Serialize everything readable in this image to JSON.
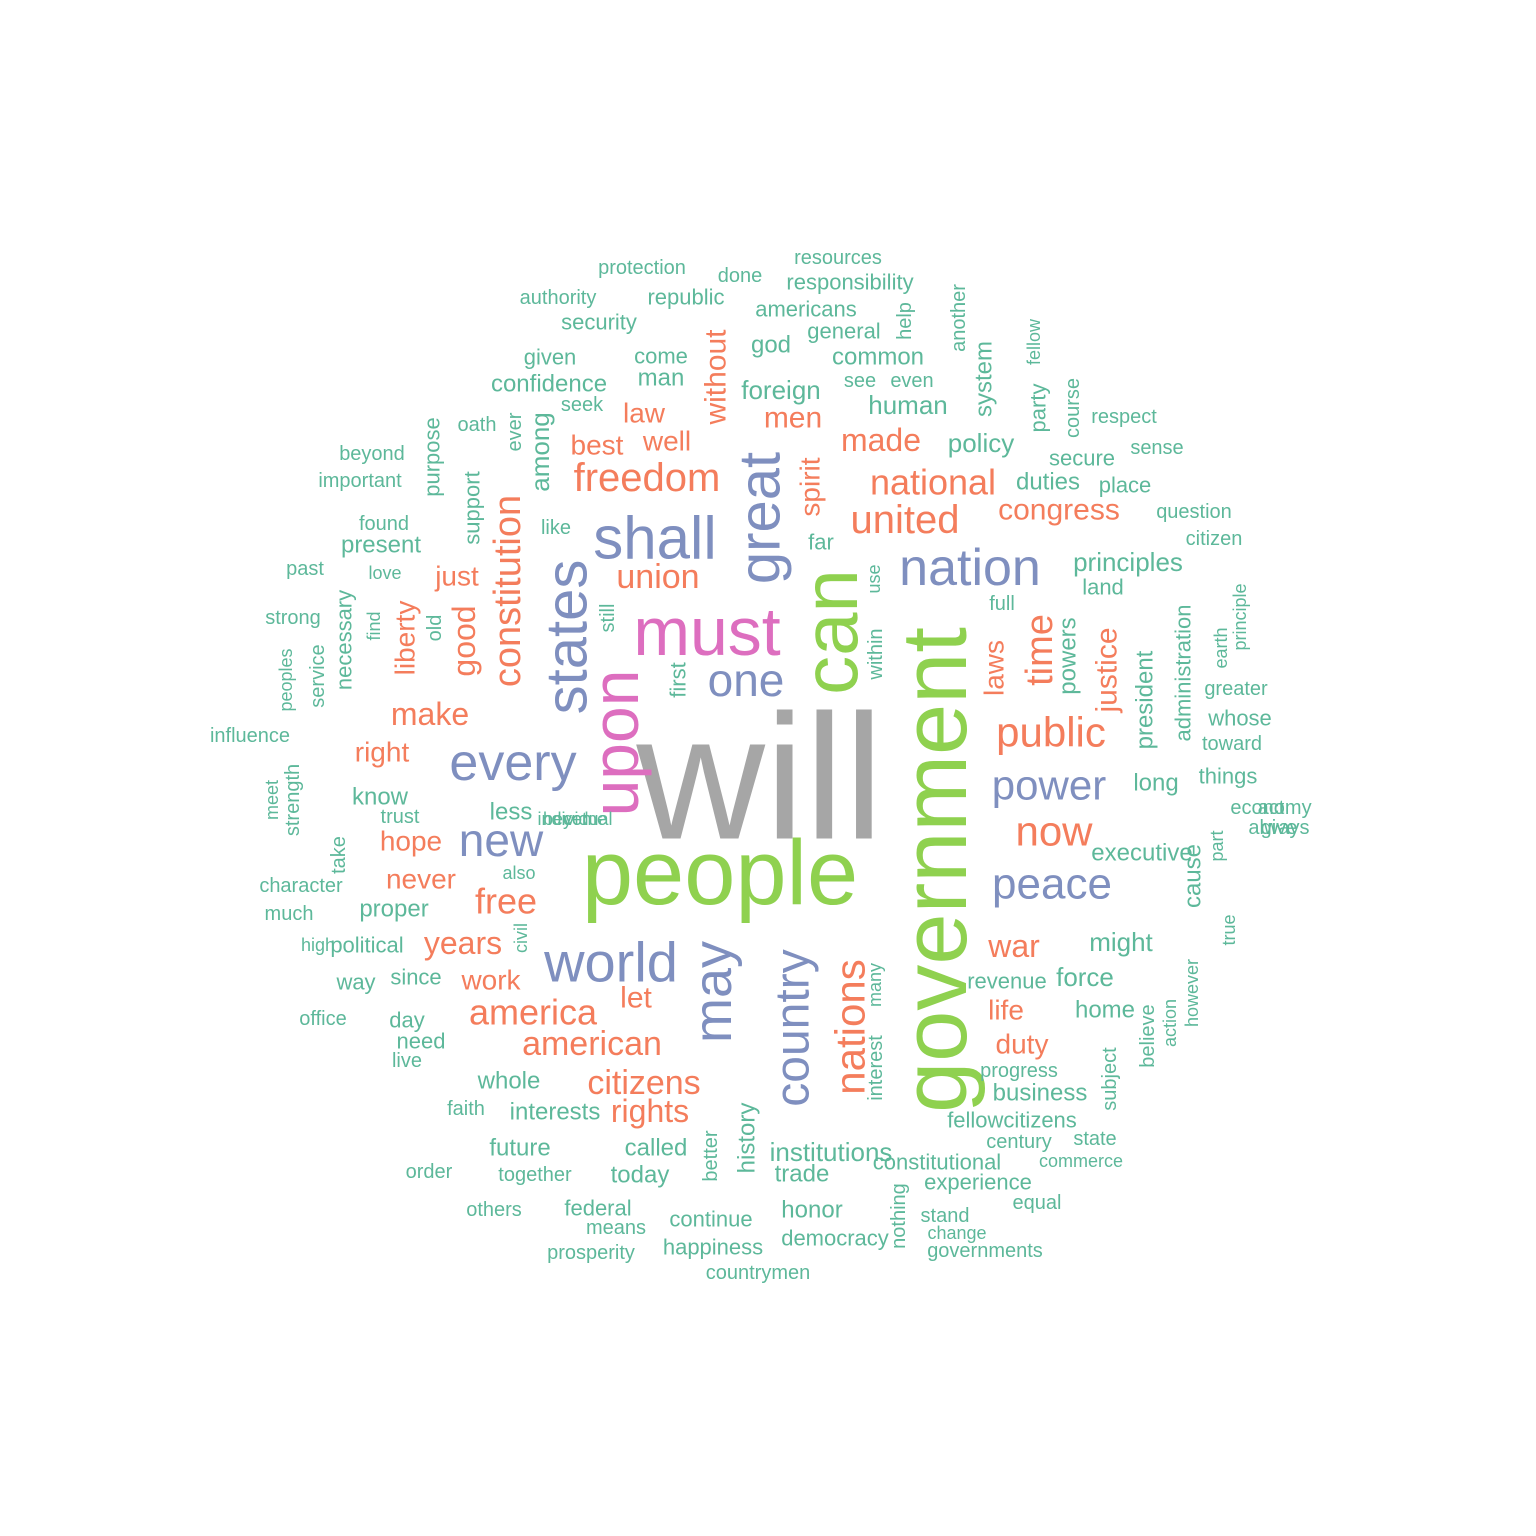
{
  "palette": {
    "grey": "#A6A6A6",
    "green": "#8FD14F",
    "pink": "#DD6EBF",
    "blue": "#7F8FBF",
    "orange": "#F47D5C",
    "teal": "#5DB89A"
  },
  "words": [
    {
      "text": "will",
      "color": "grey"
    },
    {
      "text": "people",
      "color": "green"
    },
    {
      "text": "government",
      "color": "green"
    },
    {
      "text": "can",
      "color": "green"
    },
    {
      "text": "must",
      "color": "pink"
    },
    {
      "text": "upon",
      "color": "pink"
    },
    {
      "text": "shall",
      "color": "blue"
    },
    {
      "text": "great",
      "color": "blue"
    },
    {
      "text": "states",
      "color": "blue"
    },
    {
      "text": "nation",
      "color": "blue"
    },
    {
      "text": "every",
      "color": "blue"
    },
    {
      "text": "world",
      "color": "blue"
    },
    {
      "text": "may",
      "color": "blue"
    },
    {
      "text": "country",
      "color": "blue"
    },
    {
      "text": "one",
      "color": "blue"
    },
    {
      "text": "new",
      "color": "blue"
    },
    {
      "text": "power",
      "color": "blue"
    },
    {
      "text": "peace",
      "color": "blue"
    },
    {
      "text": "public",
      "color": "orange"
    },
    {
      "text": "now",
      "color": "orange"
    },
    {
      "text": "nations",
      "color": "orange"
    },
    {
      "text": "freedom",
      "color": "orange"
    },
    {
      "text": "united",
      "color": "orange"
    },
    {
      "text": "constitution",
      "color": "orange"
    },
    {
      "text": "america",
      "color": "orange"
    },
    {
      "text": "american",
      "color": "orange"
    },
    {
      "text": "union",
      "color": "orange"
    },
    {
      "text": "time",
      "color": "orange"
    },
    {
      "text": "national",
      "color": "orange"
    },
    {
      "text": "made",
      "color": "orange"
    },
    {
      "text": "free",
      "color": "orange"
    },
    {
      "text": "citizens",
      "color": "orange"
    },
    {
      "text": "rights",
      "color": "orange"
    },
    {
      "text": "war",
      "color": "orange"
    },
    {
      "text": "years",
      "color": "orange"
    },
    {
      "text": "make",
      "color": "orange"
    },
    {
      "text": "good",
      "color": "orange"
    },
    {
      "text": "justice",
      "color": "orange"
    },
    {
      "text": "congress",
      "color": "orange"
    },
    {
      "text": "men",
      "color": "orange"
    },
    {
      "text": "law",
      "color": "orange"
    },
    {
      "text": "well",
      "color": "orange"
    },
    {
      "text": "best",
      "color": "orange"
    },
    {
      "text": "without",
      "color": "orange"
    },
    {
      "text": "spirit",
      "color": "orange"
    },
    {
      "text": "just",
      "color": "orange"
    },
    {
      "text": "liberty",
      "color": "orange"
    },
    {
      "text": "laws",
      "color": "orange"
    },
    {
      "text": "right",
      "color": "orange"
    },
    {
      "text": "hope",
      "color": "orange"
    },
    {
      "text": "never",
      "color": "orange"
    },
    {
      "text": "work",
      "color": "orange"
    },
    {
      "text": "let",
      "color": "orange"
    },
    {
      "text": "life",
      "color": "orange"
    },
    {
      "text": "duty",
      "color": "orange"
    },
    {
      "text": "resources",
      "color": "teal"
    },
    {
      "text": "protection",
      "color": "teal"
    },
    {
      "text": "done",
      "color": "teal"
    },
    {
      "text": "responsibility",
      "color": "teal"
    },
    {
      "text": "authority",
      "color": "teal"
    },
    {
      "text": "republic",
      "color": "teal"
    },
    {
      "text": "americans",
      "color": "teal"
    },
    {
      "text": "security",
      "color": "teal"
    },
    {
      "text": "general",
      "color": "teal"
    },
    {
      "text": "help",
      "color": "teal"
    },
    {
      "text": "another",
      "color": "teal"
    },
    {
      "text": "god",
      "color": "teal"
    },
    {
      "text": "given",
      "color": "teal"
    },
    {
      "text": "come",
      "color": "teal"
    },
    {
      "text": "common",
      "color": "teal"
    },
    {
      "text": "system",
      "color": "teal"
    },
    {
      "text": "fellow",
      "color": "teal"
    },
    {
      "text": "confidence",
      "color": "teal"
    },
    {
      "text": "man",
      "color": "teal"
    },
    {
      "text": "see",
      "color": "teal"
    },
    {
      "text": "even",
      "color": "teal"
    },
    {
      "text": "foreign",
      "color": "teal"
    },
    {
      "text": "course",
      "color": "teal"
    },
    {
      "text": "party",
      "color": "teal"
    },
    {
      "text": "seek",
      "color": "teal"
    },
    {
      "text": "human",
      "color": "teal"
    },
    {
      "text": "respect",
      "color": "teal"
    },
    {
      "text": "oath",
      "color": "teal"
    },
    {
      "text": "ever",
      "color": "teal"
    },
    {
      "text": "among",
      "color": "teal"
    },
    {
      "text": "policy",
      "color": "teal"
    },
    {
      "text": "beyond",
      "color": "teal"
    },
    {
      "text": "purpose",
      "color": "teal"
    },
    {
      "text": "sense",
      "color": "teal"
    },
    {
      "text": "secure",
      "color": "teal"
    },
    {
      "text": "important",
      "color": "teal"
    },
    {
      "text": "duties",
      "color": "teal"
    },
    {
      "text": "place",
      "color": "teal"
    },
    {
      "text": "support",
      "color": "teal"
    },
    {
      "text": "found",
      "color": "teal"
    },
    {
      "text": "like",
      "color": "teal"
    },
    {
      "text": "question",
      "color": "teal"
    },
    {
      "text": "present",
      "color": "teal"
    },
    {
      "text": "far",
      "color": "teal"
    },
    {
      "text": "citizen",
      "color": "teal"
    },
    {
      "text": "principles",
      "color": "teal"
    },
    {
      "text": "past",
      "color": "teal"
    },
    {
      "text": "love",
      "color": "teal"
    },
    {
      "text": "use",
      "color": "teal"
    },
    {
      "text": "land",
      "color": "teal"
    },
    {
      "text": "full",
      "color": "teal"
    },
    {
      "text": "strong",
      "color": "teal"
    },
    {
      "text": "find",
      "color": "teal"
    },
    {
      "text": "still",
      "color": "teal"
    },
    {
      "text": "old",
      "color": "teal"
    },
    {
      "text": "within",
      "color": "teal"
    },
    {
      "text": "principle",
      "color": "teal"
    },
    {
      "text": "earth",
      "color": "teal"
    },
    {
      "text": "powers",
      "color": "teal"
    },
    {
      "text": "peoples",
      "color": "teal"
    },
    {
      "text": "service",
      "color": "teal"
    },
    {
      "text": "necessary",
      "color": "teal"
    },
    {
      "text": "first",
      "color": "teal"
    },
    {
      "text": "administration",
      "color": "teal"
    },
    {
      "text": "president",
      "color": "teal"
    },
    {
      "text": "greater",
      "color": "teal"
    },
    {
      "text": "whose",
      "color": "teal"
    },
    {
      "text": "influence",
      "color": "teal"
    },
    {
      "text": "toward",
      "color": "teal"
    },
    {
      "text": "strength",
      "color": "teal"
    },
    {
      "text": "things",
      "color": "teal"
    },
    {
      "text": "know",
      "color": "teal"
    },
    {
      "text": "long",
      "color": "teal"
    },
    {
      "text": "meet",
      "color": "teal"
    },
    {
      "text": "trust",
      "color": "teal"
    },
    {
      "text": "less",
      "color": "teal"
    },
    {
      "text": "become",
      "color": "teal"
    },
    {
      "text": "act",
      "color": "teal"
    },
    {
      "text": "individual",
      "color": "teal"
    },
    {
      "text": "always",
      "color": "teal"
    },
    {
      "text": "take",
      "color": "teal"
    },
    {
      "text": "economy",
      "color": "teal"
    },
    {
      "text": "yet",
      "color": "teal"
    },
    {
      "text": "give",
      "color": "teal"
    },
    {
      "text": "part",
      "color": "teal"
    },
    {
      "text": "executive",
      "color": "teal"
    },
    {
      "text": "cause",
      "color": "teal"
    },
    {
      "text": "also",
      "color": "teal"
    },
    {
      "text": "character",
      "color": "teal"
    },
    {
      "text": "much",
      "color": "teal"
    },
    {
      "text": "proper",
      "color": "teal"
    },
    {
      "text": "true",
      "color": "teal"
    },
    {
      "text": "civil",
      "color": "teal"
    },
    {
      "text": "high",
      "color": "teal"
    },
    {
      "text": "political",
      "color": "teal"
    },
    {
      "text": "might",
      "color": "teal"
    },
    {
      "text": "way",
      "color": "teal"
    },
    {
      "text": "since",
      "color": "teal"
    },
    {
      "text": "many",
      "color": "teal"
    },
    {
      "text": "force",
      "color": "teal"
    },
    {
      "text": "revenue",
      "color": "teal"
    },
    {
      "text": "action",
      "color": "teal"
    },
    {
      "text": "however",
      "color": "teal"
    },
    {
      "text": "office",
      "color": "teal"
    },
    {
      "text": "day",
      "color": "teal"
    },
    {
      "text": "home",
      "color": "teal"
    },
    {
      "text": "believe",
      "color": "teal"
    },
    {
      "text": "need",
      "color": "teal"
    },
    {
      "text": "interest",
      "color": "teal"
    },
    {
      "text": "subject",
      "color": "teal"
    },
    {
      "text": "live",
      "color": "teal"
    },
    {
      "text": "progress",
      "color": "teal"
    },
    {
      "text": "whole",
      "color": "teal"
    },
    {
      "text": "business",
      "color": "teal"
    },
    {
      "text": "faith",
      "color": "teal"
    },
    {
      "text": "interests",
      "color": "teal"
    },
    {
      "text": "history",
      "color": "teal"
    },
    {
      "text": "better",
      "color": "teal"
    },
    {
      "text": "fellowcitizens",
      "color": "teal"
    },
    {
      "text": "future",
      "color": "teal"
    },
    {
      "text": "called",
      "color": "teal"
    },
    {
      "text": "century",
      "color": "teal"
    },
    {
      "text": "state",
      "color": "teal"
    },
    {
      "text": "institutions",
      "color": "teal"
    },
    {
      "text": "constitutional",
      "color": "teal"
    },
    {
      "text": "order",
      "color": "teal"
    },
    {
      "text": "together",
      "color": "teal"
    },
    {
      "text": "today",
      "color": "teal"
    },
    {
      "text": "trade",
      "color": "teal"
    },
    {
      "text": "commerce",
      "color": "teal"
    },
    {
      "text": "experience",
      "color": "teal"
    },
    {
      "text": "others",
      "color": "teal"
    },
    {
      "text": "federal",
      "color": "teal"
    },
    {
      "text": "nothing",
      "color": "teal"
    },
    {
      "text": "equal",
      "color": "teal"
    },
    {
      "text": "honor",
      "color": "teal"
    },
    {
      "text": "stand",
      "color": "teal"
    },
    {
      "text": "means",
      "color": "teal"
    },
    {
      "text": "continue",
      "color": "teal"
    },
    {
      "text": "change",
      "color": "teal"
    },
    {
      "text": "democracy",
      "color": "teal"
    },
    {
      "text": "prosperity",
      "color": "teal"
    },
    {
      "text": "happiness",
      "color": "teal"
    },
    {
      "text": "governments",
      "color": "teal"
    },
    {
      "text": "countrymen",
      "color": "teal"
    }
  ]
}
